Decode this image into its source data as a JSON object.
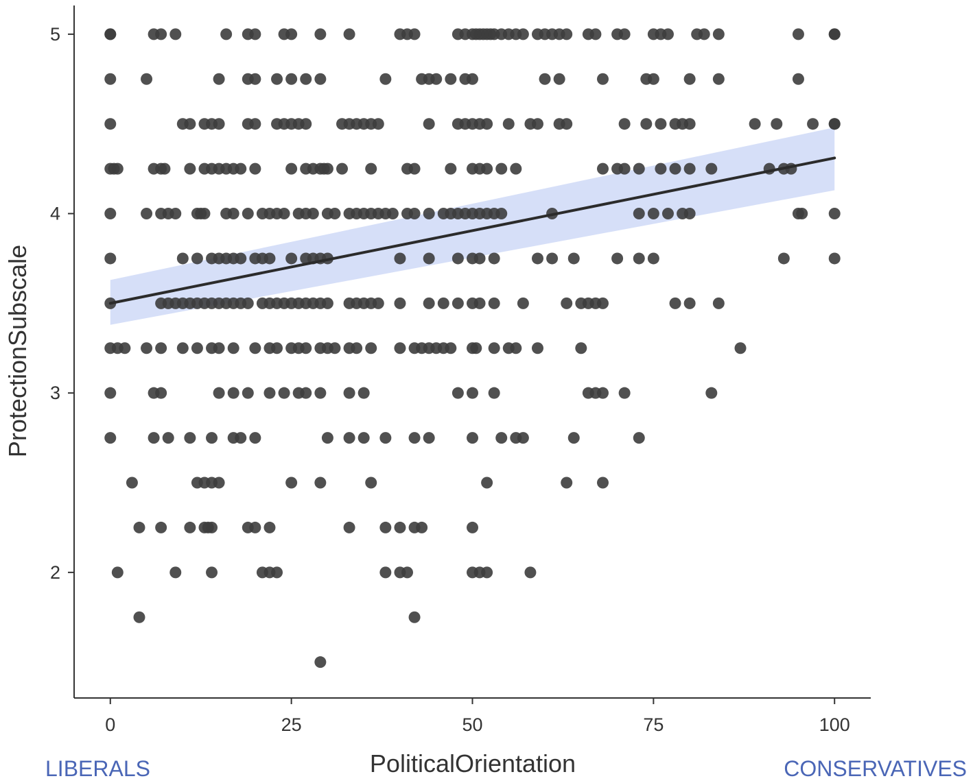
{
  "chart_data": {
    "type": "scatter",
    "title": "",
    "xlabel": "PoliticalOrientation",
    "ylabel": "ProtectionSubscale",
    "xlim": [
      -5,
      105
    ],
    "ylim": [
      1.3,
      5.16
    ],
    "x_ticks": [
      0,
      25,
      50,
      75,
      100
    ],
    "y_ticks": [
      2,
      3,
      4,
      5
    ],
    "grid": false,
    "legend": "none",
    "point_color": "#3d3d3d",
    "line_color": "#2b2b2b",
    "band_color": "#c8d4f5",
    "label_color": "#4a66b6",
    "x_left_label": "LIBERALS",
    "x_right_label": "CONSERVATIVES",
    "regression": {
      "x": [
        0,
        100
      ],
      "y": [
        3.5,
        4.31
      ],
      "ci_lower": [
        3.38,
        4.13
      ],
      "ci_upper": [
        3.63,
        4.48
      ]
    },
    "rows": [
      {
        "y": 5.0,
        "x": [
          0,
          0,
          6,
          7,
          9,
          16,
          19,
          20,
          24,
          25,
          29,
          33,
          40,
          41,
          42,
          48,
          49,
          50,
          50.5,
          51,
          51.5,
          52,
          52.5,
          53,
          54,
          55,
          56,
          57,
          59,
          60,
          61,
          62,
          63,
          66,
          67,
          70,
          71,
          75,
          76,
          77,
          81,
          82,
          84,
          95,
          100,
          100
        ]
      },
      {
        "y": 4.75,
        "x": [
          0,
          5,
          15,
          19,
          20,
          23,
          25,
          27,
          29,
          38,
          43,
          44,
          45,
          47,
          49,
          50,
          60,
          62,
          68,
          74,
          75,
          80,
          84,
          95
        ]
      },
      {
        "y": 4.5,
        "x": [
          0,
          10,
          11,
          13,
          14,
          15,
          19,
          20,
          23,
          24,
          25,
          26,
          27,
          32,
          33,
          34,
          35,
          36,
          37,
          44,
          48,
          49,
          50,
          51,
          52,
          55,
          58,
          59,
          62,
          63,
          71,
          74,
          76,
          78,
          79,
          80,
          89,
          92,
          97,
          100,
          100
        ]
      },
      {
        "y": 4.25,
        "x": [
          0,
          0.5,
          1,
          6,
          7,
          7.5,
          11,
          13,
          14,
          15,
          16,
          17,
          18,
          20,
          25,
          27,
          28,
          29,
          29.5,
          30,
          32,
          36,
          41,
          42,
          47,
          50,
          51,
          52,
          54,
          56,
          68,
          70,
          71,
          73,
          76,
          78,
          80,
          83,
          91,
          93,
          94
        ]
      },
      {
        "y": 4.0,
        "x": [
          0,
          5,
          7,
          8,
          9,
          12,
          12.5,
          13,
          16,
          17,
          19,
          21,
          22,
          23,
          24,
          26,
          27,
          28,
          30,
          31,
          33,
          34,
          35,
          36,
          37,
          38,
          39,
          41,
          42,
          44,
          46,
          47,
          48,
          49,
          50,
          51,
          52,
          53,
          54,
          61,
          73,
          75,
          77,
          79,
          80,
          95,
          95.5,
          100
        ]
      },
      {
        "y": 3.75,
        "x": [
          0,
          10,
          12,
          14,
          15,
          16,
          17,
          18,
          20,
          21,
          22,
          25,
          27,
          28,
          29,
          30,
          40,
          44,
          48,
          50,
          51,
          53,
          59,
          61,
          64,
          70,
          73,
          75,
          93,
          100
        ]
      },
      {
        "y": 3.5,
        "x": [
          0,
          7,
          8,
          9,
          10,
          11,
          12,
          13,
          14,
          15,
          16,
          17,
          18,
          19,
          21,
          22,
          23,
          24,
          25,
          26,
          27,
          28,
          29,
          30,
          33,
          34,
          35,
          36,
          37,
          40,
          44,
          46,
          48,
          50,
          51,
          53,
          57,
          63,
          65,
          66,
          67,
          68,
          78,
          80,
          84
        ]
      },
      {
        "y": 3.25,
        "x": [
          0,
          1,
          2,
          5,
          7,
          10,
          12,
          14,
          15,
          17,
          20,
          22,
          23,
          25,
          26,
          27,
          29,
          30,
          31,
          33,
          34,
          36,
          40,
          42,
          43,
          44,
          45,
          46,
          47,
          50,
          50.5,
          53,
          55,
          56,
          59,
          65,
          87
        ]
      },
      {
        "y": 3.0,
        "x": [
          0,
          6,
          7,
          15,
          17,
          19,
          22,
          24,
          26,
          27,
          29,
          33,
          35,
          48,
          50,
          53,
          66,
          67,
          68,
          71,
          83
        ]
      },
      {
        "y": 2.75,
        "x": [
          0,
          6,
          8,
          11,
          14,
          17,
          18,
          20,
          30,
          33,
          35,
          38,
          42,
          44,
          50,
          54,
          56,
          57,
          64,
          73
        ]
      },
      {
        "y": 2.5,
        "x": [
          3,
          12,
          13,
          14,
          15,
          25,
          29,
          36,
          52,
          63,
          68
        ]
      },
      {
        "y": 2.25,
        "x": [
          4,
          7,
          11,
          13,
          13.5,
          14,
          19,
          20,
          22,
          33,
          38,
          40,
          42,
          43,
          50
        ]
      },
      {
        "y": 2.0,
        "x": [
          1,
          9,
          14,
          21,
          22,
          23,
          38,
          40,
          41,
          50,
          51,
          52,
          58
        ]
      },
      {
        "y": 1.75,
        "x": [
          4,
          42
        ]
      },
      {
        "y": 1.5,
        "x": [
          29
        ]
      }
    ]
  }
}
